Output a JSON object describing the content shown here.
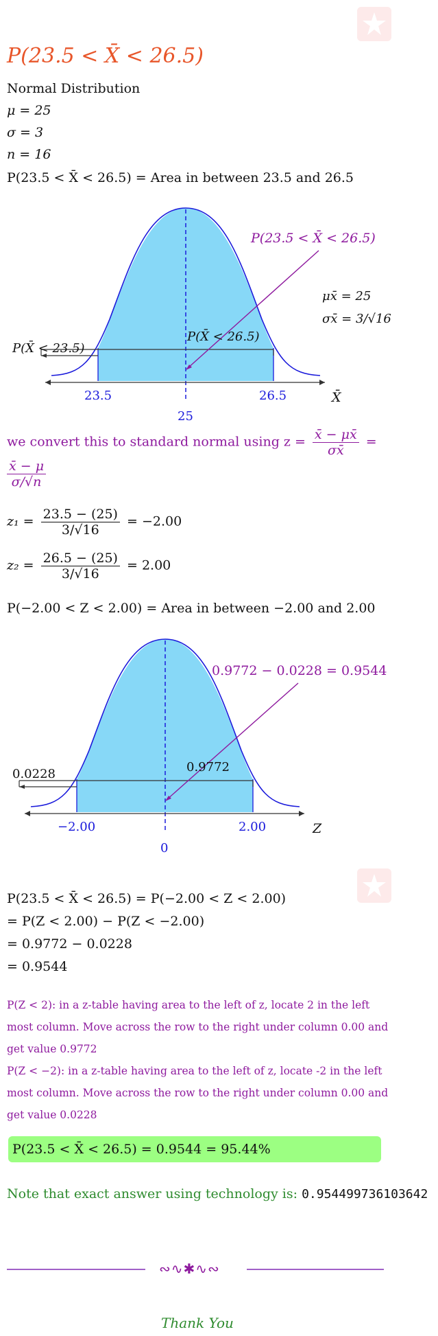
{
  "title": "P(23.5 < X̄ < 26.5)",
  "given": {
    "distribution": "Normal Distribution",
    "mu": "μ = 25",
    "sigma": "σ = 3",
    "n": "n = 16",
    "area_statement": "P(23.5 < X̄ < 26.5) = Area in between 23.5 and 26.5"
  },
  "curve1": {
    "label_prob": "P(23.5 < X̄ < 26.5)",
    "mu_xbar": "μx̄ = 25",
    "sigma_xbar": "σx̄ = 3/√16",
    "left_tail": "P(X̄ < 23.5)",
    "cum_label": "P(X̄ < 26.5)",
    "tick_low": "23.5",
    "tick_high": "26.5",
    "center": "25",
    "axis_var": "X̄"
  },
  "conversion": {
    "intro": "we convert this to standard normal using z =",
    "num1": "x̄ − μx̄",
    "den1": "σx̄",
    "num2": "x̄ − μ",
    "den2": "σ/√n"
  },
  "z1": {
    "lhs": "z₁ =",
    "num": "23.5 − (25)",
    "den": "3/√16",
    "rhs": "= −2.00"
  },
  "z2": {
    "lhs": "z₂ =",
    "num": "26.5 − (25)",
    "den": "3/√16",
    "rhs": "= 2.00"
  },
  "z_area_statement": "P(−2.00 < Z < 2.00) = Area in between −2.00 and 2.00",
  "curve2": {
    "label_prob": "0.9772 − 0.0228 = 0.9544",
    "left_tail": "0.0228",
    "cum_label": "0.9772",
    "tick_low": "−2.00",
    "tick_high": "2.00",
    "center": "0",
    "axis_var": "Z"
  },
  "steps": [
    "P(23.5 < X̄ < 26.5) = P(−2.00 < Z < 2.00)",
    "= P(Z < 2.00) − P(Z < −2.00)",
    "= 0.9772 − 0.0228",
    "= 0.9544"
  ],
  "explanations": [
    "P(Z < 2): in a z-table having area to the left of z, locate 2 in the left most column. Move across the row to the right under column 0.00 and get value 0.9772",
    "P(Z < −2): in a z-table having area to the left of z, locate -2 in the left most column. Move across the row to the right under column 0.00 and get value 0.0228"
  ],
  "answer": "P(23.5 < X̄ < 26.5) = 0.9544 = 95.44%",
  "note": {
    "text": "Note that exact answer using technology is:",
    "value": "0.954499736103642"
  },
  "thanks": "Thank You",
  "colors": {
    "title": "#e8562a",
    "purple": "#8e1a9e",
    "curve_fill": "#87d8f7",
    "curve_stroke": "#1a1adb",
    "answer_bg": "#9cff82",
    "green": "#2e8b2e"
  }
}
